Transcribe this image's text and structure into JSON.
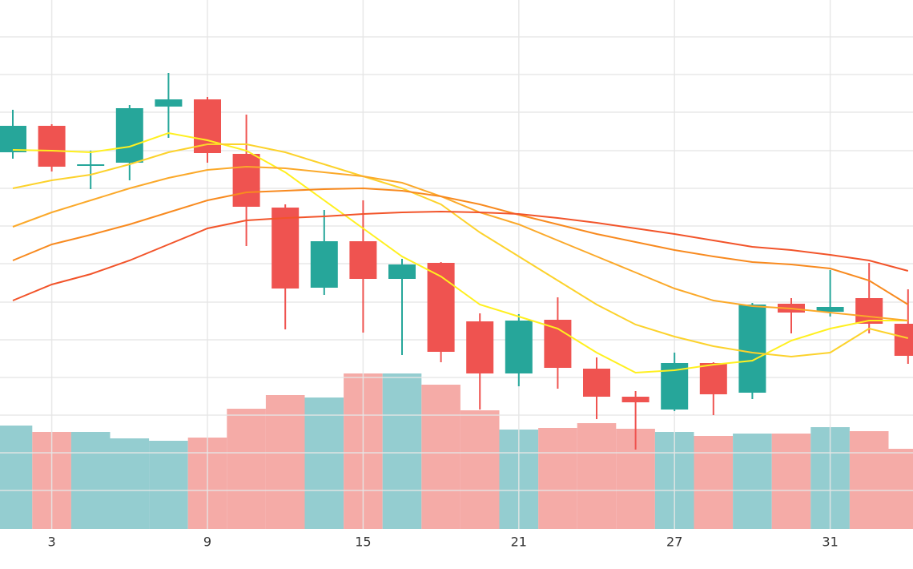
{
  "chart_data": {
    "type": "candlestick",
    "categories": [
      null,
      "3",
      null,
      null,
      null,
      "9",
      null,
      null,
      null,
      "15",
      null,
      null,
      null,
      "21",
      null,
      null,
      null,
      "27",
      null,
      null,
      null,
      "31",
      null,
      null
    ],
    "open": [
      47.0,
      50.3,
      45.4,
      45.7,
      52.7,
      53.6,
      46.8,
      40.1,
      30.1,
      35.9,
      31.2,
      33.2,
      25.9,
      19.4,
      26.1,
      20.0,
      16.5,
      14.9,
      20.7,
      17.0,
      28.1,
      27.1,
      28.8,
      25.6
    ],
    "high": [
      52.3,
      50.5,
      47.2,
      52.9,
      56.9,
      53.9,
      51.7,
      40.5,
      39.8,
      41.0,
      33.7,
      33.3,
      26.9,
      26.8,
      28.9,
      21.4,
      17.2,
      22.0,
      20.8,
      28.2,
      28.8,
      32.3,
      33.2,
      29.9
    ],
    "low": [
      46.2,
      44.6,
      42.4,
      43.5,
      48.8,
      45.7,
      35.3,
      24.9,
      29.2,
      24.5,
      21.7,
      20.8,
      14.9,
      17.8,
      17.5,
      13.7,
      9.9,
      14.7,
      14.2,
      16.2,
      24.4,
      26.5,
      24.4,
      20.6
    ],
    "close": [
      50.3,
      45.2,
      45.5,
      52.5,
      53.6,
      46.9,
      40.2,
      30.0,
      35.9,
      31.2,
      33.0,
      22.1,
      19.4,
      26.0,
      20.1,
      16.5,
      15.8,
      20.7,
      16.8,
      28.0,
      27.0,
      27.7,
      25.6,
      21.6
    ],
    "volume": [
      129,
      121,
      121,
      113,
      110,
      114,
      150,
      167,
      164,
      194,
      194,
      180,
      148,
      124,
      126,
      132,
      125,
      121,
      116,
      119,
      119,
      127,
      122,
      100
    ],
    "up_color": "#26a69a",
    "down_color": "#ef5350",
    "volume_up_color": "#94cdd0",
    "volume_down_color": "#f5aba7",
    "moving_averages": [
      {
        "color": "#fff01f",
        "values": [
          47.3,
          47.2,
          47.0,
          47.7,
          49.4,
          48.5,
          47.2,
          44.5,
          41.0,
          37.5,
          34.0,
          31.5,
          28.0,
          26.5,
          25.0,
          22.0,
          19.5,
          19.8,
          20.5,
          21.0,
          23.5,
          25.0,
          26.0,
          26.0
        ]
      },
      {
        "color": "#fcd22c",
        "values": [
          42.5,
          43.5,
          44.2,
          45.5,
          47.0,
          48.0,
          48.0,
          47.0,
          45.5,
          44.0,
          42.5,
          40.5,
          37.0,
          34.0,
          31.0,
          28.0,
          25.5,
          24.0,
          22.8,
          22.0,
          21.5,
          22.0,
          25.0,
          23.8
        ]
      },
      {
        "color": "#fba92a",
        "values": [
          37.7,
          39.5,
          41.0,
          42.5,
          43.8,
          44.8,
          45.2,
          45.0,
          44.5,
          44.0,
          43.2,
          41.5,
          39.5,
          38.0,
          36.0,
          34.0,
          32.0,
          30.0,
          28.5,
          27.8,
          27.5,
          27.0,
          26.5,
          26.0
        ]
      },
      {
        "color": "#f88a1f",
        "values": [
          33.5,
          35.5,
          36.7,
          38.0,
          39.5,
          41.0,
          42.0,
          42.2,
          42.4,
          42.5,
          42.2,
          41.5,
          40.5,
          39.2,
          38.0,
          36.8,
          35.8,
          34.8,
          34.0,
          33.3,
          33.0,
          32.5,
          31.0,
          28.0
        ]
      },
      {
        "color": "#f2542a",
        "values": [
          28.5,
          30.5,
          31.8,
          33.5,
          35.5,
          37.5,
          38.5,
          38.8,
          39.0,
          39.3,
          39.5,
          39.6,
          39.5,
          39.3,
          38.8,
          38.2,
          37.5,
          36.8,
          36.0,
          35.2,
          34.8,
          34.2,
          33.5,
          32.2
        ]
      }
    ],
    "ylim": [
      0,
      66
    ],
    "yticks": [
      4.8,
      9.5,
      14.2,
      18.9,
      23.6,
      28.3,
      33.1,
      37.8,
      42.5,
      47.2,
      52,
      56.7,
      61.4
    ],
    "y2lim": [
      0,
      660
    ],
    "grid": true
  }
}
